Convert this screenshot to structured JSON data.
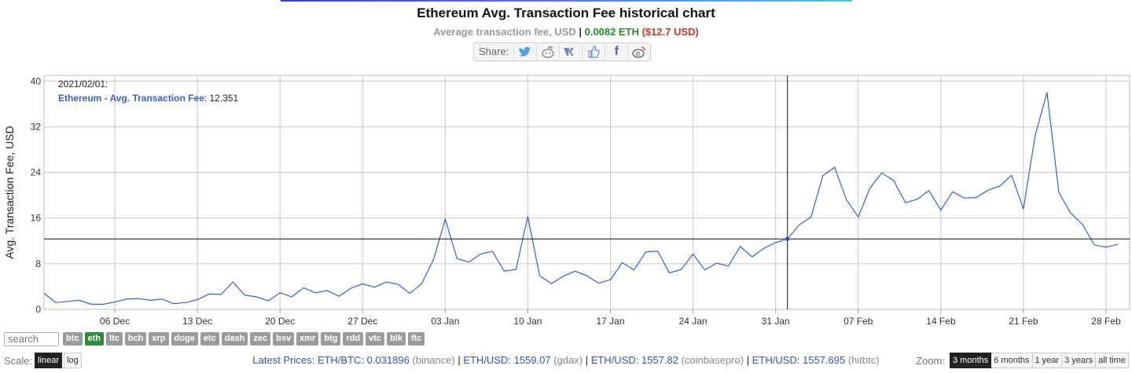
{
  "header": {
    "title": "Ethereum Avg. Transaction Fee historical chart",
    "subtitle_label": "Average transaction fee, USD",
    "subtitle_sep": "|",
    "subtitle_eth": "0.0082 ETH",
    "subtitle_usd": "($12.7 USD)"
  },
  "share": {
    "label": "Share:",
    "icons": [
      "twitter-icon",
      "reddit-icon",
      "vk-icon",
      "like-icon",
      "facebook-icon",
      "weibo-icon"
    ]
  },
  "tooltip": {
    "date": "2021/02/01:",
    "series": "Ethereum - Avg. Transaction Fee",
    "value": "12.351"
  },
  "chart_data": {
    "type": "line",
    "ylabel": "Avg. Transaction Fee, USD",
    "ylim": [
      0,
      41
    ],
    "y_ticks": [
      0,
      8,
      16,
      24,
      32,
      40
    ],
    "x_range": [
      "2020-11-30",
      "2021-03-02"
    ],
    "x_ticks": [
      "06 Dec",
      "13 Dec",
      "20 Dec",
      "27 Dec",
      "03 Jan",
      "10 Jan",
      "17 Jan",
      "24 Jan",
      "31 Jan",
      "07 Feb",
      "14 Feb",
      "21 Feb",
      "28 Feb"
    ],
    "grid": true,
    "line_color": "#3b5fc9",
    "crosshair_date": "2021-02-01",
    "series": [
      {
        "name": "Ethereum - Avg. Transaction Fee",
        "values": [
          [
            "2020-11-30",
            2.8
          ],
          [
            "2020-12-01",
            1.2
          ],
          [
            "2020-12-02",
            1.4
          ],
          [
            "2020-12-03",
            1.6
          ],
          [
            "2020-12-04",
            0.9
          ],
          [
            "2020-12-05",
            0.9
          ],
          [
            "2020-12-06",
            1.3
          ],
          [
            "2020-12-07",
            1.8
          ],
          [
            "2020-12-08",
            1.9
          ],
          [
            "2020-12-09",
            1.6
          ],
          [
            "2020-12-10",
            1.8
          ],
          [
            "2020-12-11",
            1.0
          ],
          [
            "2020-12-12",
            1.2
          ],
          [
            "2020-12-13",
            1.7
          ],
          [
            "2020-12-14",
            2.7
          ],
          [
            "2020-12-15",
            2.6
          ],
          [
            "2020-12-16",
            4.8
          ],
          [
            "2020-12-17",
            2.5
          ],
          [
            "2020-12-18",
            2.2
          ],
          [
            "2020-12-19",
            1.5
          ],
          [
            "2020-12-20",
            2.9
          ],
          [
            "2020-12-21",
            2.2
          ],
          [
            "2020-12-22",
            3.8
          ],
          [
            "2020-12-23",
            2.9
          ],
          [
            "2020-12-24",
            3.3
          ],
          [
            "2020-12-25",
            2.3
          ],
          [
            "2020-12-26",
            3.7
          ],
          [
            "2020-12-27",
            4.5
          ],
          [
            "2020-12-28",
            3.9
          ],
          [
            "2020-12-29",
            4.8
          ],
          [
            "2020-12-30",
            4.4
          ],
          [
            "2020-12-31",
            2.8
          ],
          [
            "2021-01-01",
            4.5
          ],
          [
            "2021-01-02",
            8.7
          ],
          [
            "2021-01-03",
            15.8
          ],
          [
            "2021-01-04",
            8.9
          ],
          [
            "2021-01-05",
            8.3
          ],
          [
            "2021-01-06",
            9.7
          ],
          [
            "2021-01-07",
            10.2
          ],
          [
            "2021-01-08",
            6.7
          ],
          [
            "2021-01-09",
            7.0
          ],
          [
            "2021-01-10",
            16.3
          ],
          [
            "2021-01-11",
            5.9
          ],
          [
            "2021-01-12",
            4.5
          ],
          [
            "2021-01-13",
            5.8
          ],
          [
            "2021-01-14",
            6.7
          ],
          [
            "2021-01-15",
            5.9
          ],
          [
            "2021-01-16",
            4.6
          ],
          [
            "2021-01-17",
            5.2
          ],
          [
            "2021-01-18",
            8.2
          ],
          [
            "2021-01-19",
            6.9
          ],
          [
            "2021-01-20",
            10.1
          ],
          [
            "2021-01-21",
            10.2
          ],
          [
            "2021-01-22",
            6.4
          ],
          [
            "2021-01-23",
            7.0
          ],
          [
            "2021-01-24",
            9.7
          ],
          [
            "2021-01-25",
            6.9
          ],
          [
            "2021-01-26",
            8.1
          ],
          [
            "2021-01-27",
            7.6
          ],
          [
            "2021-01-28",
            11.0
          ],
          [
            "2021-01-29",
            9.2
          ],
          [
            "2021-01-30",
            10.7
          ],
          [
            "2021-01-31",
            11.7
          ],
          [
            "2021-02-01",
            12.351
          ],
          [
            "2021-02-02",
            14.8
          ],
          [
            "2021-02-03",
            16.2
          ],
          [
            "2021-02-04",
            23.4
          ],
          [
            "2021-02-05",
            24.9
          ],
          [
            "2021-02-06",
            19.2
          ],
          [
            "2021-02-07",
            16.2
          ],
          [
            "2021-02-08",
            21.3
          ],
          [
            "2021-02-09",
            23.9
          ],
          [
            "2021-02-10",
            22.6
          ],
          [
            "2021-02-11",
            18.7
          ],
          [
            "2021-02-12",
            19.3
          ],
          [
            "2021-02-13",
            20.8
          ],
          [
            "2021-02-14",
            17.4
          ],
          [
            "2021-02-15",
            20.6
          ],
          [
            "2021-02-16",
            19.5
          ],
          [
            "2021-02-17",
            19.6
          ],
          [
            "2021-02-18",
            20.9
          ],
          [
            "2021-02-19",
            21.6
          ],
          [
            "2021-02-20",
            23.5
          ],
          [
            "2021-02-21",
            17.6
          ],
          [
            "2021-02-22",
            30.5
          ],
          [
            "2021-02-23",
            38.0
          ],
          [
            "2021-02-24",
            20.5
          ],
          [
            "2021-02-25",
            16.9
          ],
          [
            "2021-02-26",
            14.9
          ],
          [
            "2021-02-27",
            11.3
          ],
          [
            "2021-02-28",
            10.9
          ],
          [
            "2021-03-01",
            11.4
          ]
        ]
      }
    ]
  },
  "controls": {
    "search_placeholder": "search",
    "coins": [
      {
        "label": "btc",
        "active": false
      },
      {
        "label": "eth",
        "active": true
      },
      {
        "label": "ltc",
        "active": false
      },
      {
        "label": "bch",
        "active": false
      },
      {
        "label": "xrp",
        "active": false
      },
      {
        "label": "doge",
        "active": false
      },
      {
        "label": "etc",
        "active": false
      },
      {
        "label": "dash",
        "active": false
      },
      {
        "label": "zec",
        "active": false
      },
      {
        "label": "bsv",
        "active": false
      },
      {
        "label": "xmr",
        "active": false
      },
      {
        "label": "btg",
        "active": false
      },
      {
        "label": "rdd",
        "active": false
      },
      {
        "label": "vtc",
        "active": false
      },
      {
        "label": "blk",
        "active": false
      },
      {
        "label": "ftc",
        "active": false
      }
    ],
    "scale_label": "Scale:",
    "scale_options": [
      {
        "label": "linear",
        "active": true
      },
      {
        "label": "log",
        "active": false
      }
    ],
    "zoom_label": "Zoom:",
    "zoom_options": [
      {
        "label": "3 months",
        "active": true
      },
      {
        "label": "6 months",
        "active": false
      },
      {
        "label": "1 year",
        "active": false
      },
      {
        "label": "3 years",
        "active": false
      },
      {
        "label": "all time",
        "active": false
      }
    ]
  },
  "prices": {
    "label": "Latest Prices:",
    "items": [
      {
        "pair": "ETH/BTC: 0.031896",
        "source": "(binance)"
      },
      {
        "pair": "ETH/USD: 1559.07",
        "source": "(gdax)"
      },
      {
        "pair": "ETH/USD: 1557.82",
        "source": "(coinbasepro)"
      },
      {
        "pair": "ETH/USD: 1557.695",
        "source": "(hitbtc)"
      }
    ]
  }
}
